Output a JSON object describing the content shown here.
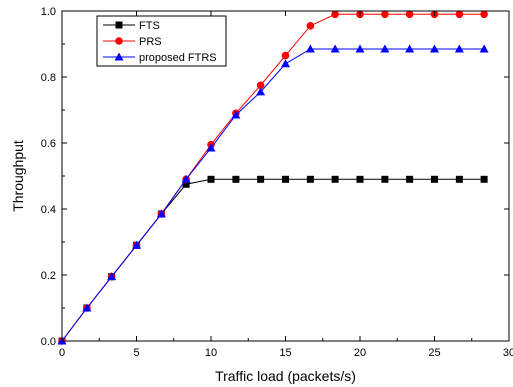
{
  "chart_data": {
    "type": "line",
    "title": "",
    "xlabel": "Traffic load (packets/s)",
    "ylabel": "Throughput",
    "xlim": [
      0,
      30
    ],
    "ylim": [
      0.0,
      1.0
    ],
    "xticks": [
      0,
      5,
      10,
      15,
      20,
      25,
      30
    ],
    "yticks": [
      0.0,
      0.2,
      0.4,
      0.6,
      0.8,
      1.0
    ],
    "ytick_labels": [
      "0.0",
      "0.2",
      "0.4",
      "0.6",
      "0.8",
      "1.0"
    ],
    "grid": false,
    "legend_position": "top-left",
    "x": [
      0,
      1.67,
      3.33,
      5.0,
      6.67,
      8.33,
      10.0,
      11.67,
      13.33,
      15.0,
      16.67,
      18.33,
      20.0,
      21.67,
      23.33,
      25.0,
      26.67,
      28.33
    ],
    "series": [
      {
        "name": "FTS",
        "color": "#000000",
        "marker": "square",
        "values": [
          0.0,
          0.1,
          0.195,
          0.29,
          0.385,
          0.475,
          0.49,
          0.49,
          0.49,
          0.49,
          0.49,
          0.49,
          0.49,
          0.49,
          0.49,
          0.49,
          0.49,
          0.49
        ]
      },
      {
        "name": "PRS",
        "color": "#ff0000",
        "marker": "circle",
        "values": [
          0.0,
          0.1,
          0.195,
          0.29,
          0.385,
          0.49,
          0.595,
          0.69,
          0.775,
          0.865,
          0.955,
          0.99,
          0.99,
          0.99,
          0.99,
          0.99,
          0.99,
          0.99
        ]
      },
      {
        "name": "proposed FTRS",
        "color": "#0000ff",
        "marker": "triangle",
        "values": [
          0.0,
          0.1,
          0.195,
          0.29,
          0.385,
          0.49,
          0.585,
          0.685,
          0.755,
          0.84,
          0.885,
          0.885,
          0.885,
          0.885,
          0.885,
          0.885,
          0.885,
          0.885
        ]
      }
    ]
  }
}
